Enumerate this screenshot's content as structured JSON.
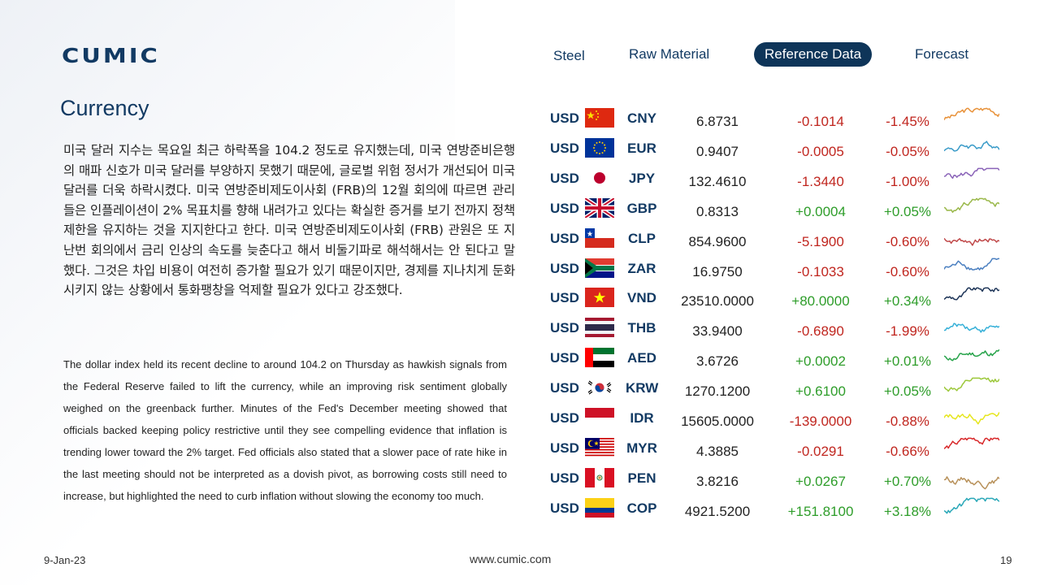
{
  "brand": {
    "logo_text": "CUMIC",
    "color": "#123a63"
  },
  "nav": {
    "items": [
      {
        "label": "Steel",
        "active": false
      },
      {
        "label": "Raw Material",
        "active": false
      },
      {
        "label": "Reference Data",
        "active": true
      },
      {
        "label": "Forecast",
        "active": false
      }
    ]
  },
  "section": {
    "title": "Currency"
  },
  "body": {
    "korean": "미국 달러 지수는 목요일 최근 하락폭을 104.2 정도로 유지했는데, 미국 연방준비은행의 매파 신호가 미국 달러를 부양하지 못했기 때문에, 글로벌 위험 정서가 개선되어 미국 달러를 더욱 하락시켰다. 미국 연방준비제도이사회 (FRB)의 12월 회의에 따르면 관리들은 인플레이션이 2% 목표치를 향해 내려가고 있다는 확실한 증거를 보기 전까지 정책 제한을 유지하는 것을 지지한다고 한다. 미국 연방준비제도이사회 (FRB) 관원은 또 지난번 회의에서 금리 인상의 속도를 늦춘다고 해서 비둘기파로 해석해서는 안 된다고 말했다. 그것은 차입 비용이 여전히 증가할 필요가 있기 때문이지만, 경제를 지나치게 둔화시키지 않는 상황에서 통화팽창을 억제할 필요가 있다고 강조했다.",
    "english": "The dollar index held its recent decline to around 104.2 on Thursday as hawkish signals from the Federal Reserve failed to lift the currency, while an improving risk sentiment globally weighed on the greenback further. Minutes of the Fed's December meeting showed that officials backed keeping policy restrictive until they see compelling evidence that inflation is trending lower toward the 2% target. Fed officials also stated that a slower pace of rate hike in the last meeting should not be interpreted as a dovish pivot, as borrowing costs still need to increase, but highlighted the need to curb inflation without slowing the economy too much."
  },
  "currencies": [
    {
      "base": "USD",
      "quote": "CNY",
      "flag": "cn-flag-icon",
      "rate": "6.8731",
      "change": "-0.1014",
      "pct": "-1.45%",
      "dir": "neg",
      "spark_color": "#e8923a"
    },
    {
      "base": "USD",
      "quote": "EUR",
      "flag": "eu-flag-icon",
      "rate": "0.9407",
      "change": "-0.0005",
      "pct": "-0.05%",
      "dir": "neg",
      "spark_color": "#3a9bc8"
    },
    {
      "base": "USD",
      "quote": "JPY",
      "flag": "jp-flag-icon",
      "rate": "132.4610",
      "change": "-1.3440",
      "pct": "-1.00%",
      "dir": "neg",
      "spark_color": "#8a63b8"
    },
    {
      "base": "USD",
      "quote": "GBP",
      "flag": "gb-flag-icon",
      "rate": "0.8313",
      "change": "+0.0004",
      "pct": "+0.05%",
      "dir": "pos",
      "spark_color": "#9ab84a"
    },
    {
      "base": "USD",
      "quote": "CLP",
      "flag": "cl-flag-icon",
      "rate": "854.9600",
      "change": "-5.1900",
      "pct": "-0.60%",
      "dir": "neg",
      "spark_color": "#c0494a"
    },
    {
      "base": "USD",
      "quote": "ZAR",
      "flag": "za-flag-icon",
      "rate": "16.9750",
      "change": "-0.1033",
      "pct": "-0.60%",
      "dir": "neg",
      "spark_color": "#4a7fc0"
    },
    {
      "base": "USD",
      "quote": "VND",
      "flag": "vn-flag-icon",
      "rate": "23510.0000",
      "change": "+80.0000",
      "pct": "+0.34%",
      "dir": "pos",
      "spark_color": "#1e3558"
    },
    {
      "base": "USD",
      "quote": "THB",
      "flag": "th-flag-icon",
      "rate": "33.9400",
      "change": "-0.6890",
      "pct": "-1.99%",
      "dir": "neg",
      "spark_color": "#36b0d8"
    },
    {
      "base": "USD",
      "quote": "AED",
      "flag": "ae-flag-icon",
      "rate": "3.6726",
      "change": "+0.0002",
      "pct": "+0.01%",
      "dir": "pos",
      "spark_color": "#27a34a"
    },
    {
      "base": "USD",
      "quote": "KRW",
      "flag": "kr-flag-icon",
      "rate": "1270.1200",
      "change": "+0.6100",
      "pct": "+0.05%",
      "dir": "pos",
      "spark_color": "#9cc83a"
    },
    {
      "base": "USD",
      "quote": "IDR",
      "flag": "id-flag-icon",
      "rate": "15605.0000",
      "change": "-139.0000",
      "pct": "-0.88%",
      "dir": "neg",
      "spark_color": "#e6e61e"
    },
    {
      "base": "USD",
      "quote": "MYR",
      "flag": "my-flag-icon",
      "rate": "4.3885",
      "change": "-0.0291",
      "pct": "-0.66%",
      "dir": "neg",
      "spark_color": "#d8282a"
    },
    {
      "base": "USD",
      "quote": "PEN",
      "flag": "pe-flag-icon",
      "rate": "3.8216",
      "change": "+0.0267",
      "pct": "+0.70%",
      "dir": "pos",
      "spark_color": "#b8915a"
    },
    {
      "base": "USD",
      "quote": "COP",
      "flag": "co-flag-icon",
      "rate": "4921.5200",
      "change": "+151.8100",
      "pct": "+3.18%",
      "dir": "pos",
      "spark_color": "#2aa8b8"
    }
  ],
  "colors": {
    "negative": "#c0261f",
    "positive": "#2e9d2a",
    "nav_active_bg": "#0e3559"
  },
  "footer": {
    "date": "9-Jan-23",
    "url": "www.cumic.com",
    "page": "19"
  }
}
